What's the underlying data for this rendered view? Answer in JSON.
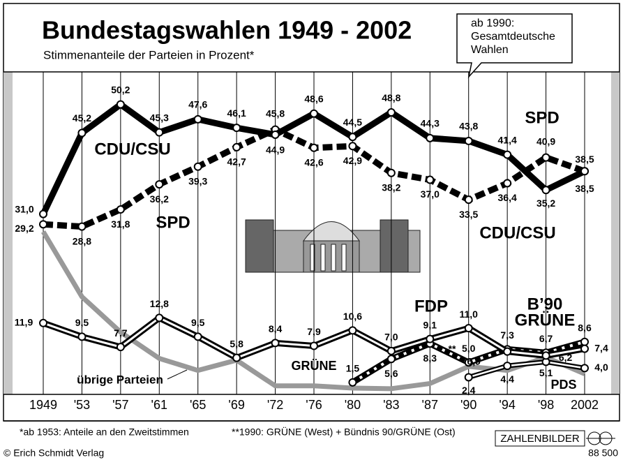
{
  "chart_data": {
    "type": "line",
    "title": "Bundestagswahlen 1949 - 2002",
    "subtitle": "Stimmenanteile der Parteien in Prozent*",
    "callout": [
      "ab 1990:",
      "Gesamtdeutsche",
      "Wahlen"
    ],
    "categories": [
      "1949",
      "'53",
      "'57",
      "'61",
      "'65",
      "'69",
      "'72",
      "'76",
      "'80",
      "'83",
      "'87",
      "'90",
      "'94",
      "'98",
      "2002"
    ],
    "ylim": [
      -0.6,
      55.9
    ],
    "series": [
      {
        "name": "CDU/CSU",
        "color": "#000000",
        "values": [
          31.0,
          45.2,
          50.2,
          45.3,
          47.6,
          46.1,
          44.9,
          48.6,
          44.5,
          48.8,
          44.3,
          43.8,
          41.4,
          35.2,
          38.5
        ],
        "value_labels": [
          "31,0",
          "45,2",
          "50,2",
          "45,3",
          "47,6",
          "46,1",
          "44,9",
          "48,6",
          "44,5",
          "48,8",
          "44,3",
          "43,8",
          "41,4",
          "35,2",
          "38,5"
        ]
      },
      {
        "name": "SPD",
        "color": "#000000",
        "values": [
          29.2,
          28.8,
          31.8,
          36.2,
          39.3,
          42.7,
          45.8,
          42.6,
          42.9,
          38.2,
          37.0,
          33.5,
          36.4,
          40.9,
          38.5
        ],
        "value_labels": [
          "29,2",
          "28,8",
          "31,8",
          "36,2",
          "39,3",
          "42,7",
          "45,8",
          "42,6",
          "42,9",
          "38,2",
          "37,0",
          "33,5",
          "36,4",
          "40,9",
          "38,5"
        ]
      },
      {
        "name": "FDP",
        "color": "#000000",
        "values": [
          11.9,
          9.5,
          7.7,
          12.8,
          9.5,
          5.8,
          8.4,
          7.9,
          10.6,
          7.0,
          9.1,
          11.0,
          6.9,
          6.2,
          7.4
        ],
        "value_labels": [
          "11,9",
          "9,5",
          "7,7",
          "12,8",
          "9,5",
          "5,8",
          "8,4",
          "7,9",
          "10,6",
          "7,0",
          "9,1",
          "11,0",
          "6,9",
          "6,2",
          "7,4"
        ]
      },
      {
        "name": "GRÜNE",
        "color": "#000000",
        "values": [
          null,
          null,
          null,
          null,
          null,
          null,
          null,
          null,
          1.5,
          5.6,
          8.3,
          5.0,
          7.3,
          6.7,
          8.6
        ],
        "value_labels": [
          null,
          null,
          null,
          null,
          null,
          null,
          null,
          null,
          "1,5",
          "5,6",
          "8,3",
          "5,0",
          "7,3",
          "6,7",
          "8,6"
        ]
      },
      {
        "name": "PDS",
        "color": "#000000",
        "values": [
          null,
          null,
          null,
          null,
          null,
          null,
          null,
          null,
          null,
          null,
          null,
          2.4,
          4.4,
          5.1,
          4.0
        ],
        "value_labels": [
          null,
          null,
          null,
          null,
          null,
          null,
          null,
          null,
          null,
          null,
          null,
          "2,4",
          "4,4",
          "5,1",
          "4,0"
        ]
      },
      {
        "name": "übrige Parteien",
        "color": "#999999",
        "values": [
          27.9,
          16.5,
          10.3,
          5.7,
          3.6,
          5.4,
          0.9,
          0.9,
          0.5,
          0.4,
          1.3,
          4.3,
          3.6,
          5.9,
          3.0
        ]
      }
    ],
    "annotations": [
      "CDU/CSU",
      "SPD",
      "B’90",
      "GRÜNE",
      "**"
    ],
    "footnotes": [
      "*ab 1953: Anteile an den Zweitstimmen",
      "**1990: GRÜNE (West) + Bündnis 90/GRÜNE (Ost)"
    ],
    "brand": "ZAHLENBILDER",
    "publisher": "© Erich Schmidt Verlag",
    "number": "88 500"
  }
}
